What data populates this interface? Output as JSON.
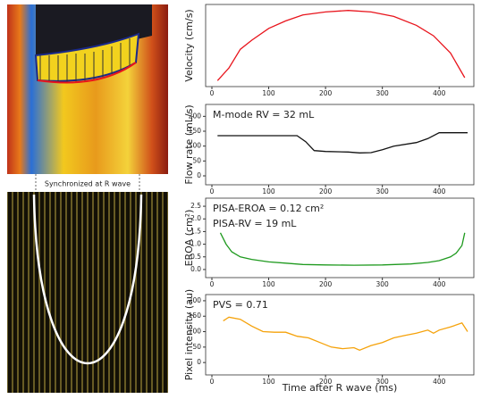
{
  "image_caption": "Synchronized at R wave",
  "chart_data": [
    {
      "type": "line",
      "y_label": "Velocity (cm/s)",
      "color": "#e8141c",
      "x": [
        10,
        30,
        50,
        70,
        100,
        130,
        160,
        200,
        240,
        280,
        320,
        360,
        390,
        420,
        445
      ],
      "values": [
        8,
        25,
        50,
        62,
        78,
        88,
        96,
        100,
        102,
        100,
        94,
        82,
        68,
        45,
        12
      ],
      "xlim": [
        -11,
        461
      ],
      "xticks": [
        0,
        100,
        200,
        300,
        400
      ],
      "ylim": [
        0,
        110
      ]
    },
    {
      "type": "line",
      "y_label": "Flow rate (mL/s)",
      "color": "#111111",
      "annotations": [
        "M-mode RV = 32 mL"
      ],
      "x": [
        10,
        150,
        165,
        180,
        200,
        240,
        260,
        280,
        300,
        320,
        360,
        380,
        400,
        450
      ],
      "values": [
        135,
        135,
        115,
        85,
        82,
        80,
        77,
        78,
        88,
        100,
        112,
        125,
        145,
        145
      ],
      "xlim": [
        -11,
        461
      ],
      "xticks": [
        0,
        100,
        200,
        300,
        400
      ],
      "ylim": [
        -30,
        240
      ],
      "yticks": [
        0,
        50,
        100,
        150,
        200
      ]
    },
    {
      "type": "line",
      "y_label": "EROA (cm²)",
      "color": "#1f9a1f",
      "annotations": [
        "PISA-EROA = 0.12 cm²",
        "PISA-RV = 19 mL"
      ],
      "x": [
        15,
        25,
        35,
        50,
        70,
        100,
        130,
        160,
        200,
        250,
        300,
        350,
        380,
        400,
        420,
        430,
        440,
        445
      ],
      "values": [
        1.45,
        1.0,
        0.7,
        0.5,
        0.4,
        0.3,
        0.25,
        0.2,
        0.18,
        0.17,
        0.18,
        0.22,
        0.28,
        0.35,
        0.5,
        0.65,
        0.95,
        1.45
      ],
      "xlim": [
        -11,
        461
      ],
      "xticks": [
        0,
        100,
        200,
        300,
        400
      ],
      "ylim": [
        -0.32,
        2.82
      ],
      "yticks": [
        {
          "value": 0,
          "label": "0.0"
        },
        0.5,
        {
          "value": 1,
          "label": "1.0"
        },
        1.5,
        {
          "value": 2,
          "label": "2.0"
        },
        2.5
      ]
    },
    {
      "type": "line",
      "y_label": "Pixel intensity (au)",
      "x_label": "Time after R wave (ms)",
      "color": "#f5a20a",
      "annotations": [
        "PVS = 0.71"
      ],
      "x": [
        20,
        30,
        50,
        70,
        90,
        110,
        130,
        150,
        170,
        190,
        210,
        230,
        250,
        260,
        280,
        300,
        320,
        340,
        360,
        380,
        390,
        400,
        420,
        440,
        450
      ],
      "values": [
        135,
        147,
        140,
        118,
        100,
        98,
        98,
        85,
        80,
        65,
        50,
        45,
        48,
        40,
        55,
        65,
        80,
        88,
        95,
        105,
        95,
        105,
        115,
        128,
        100
      ],
      "xlim": [
        -11,
        461
      ],
      "xticks": [
        0,
        100,
        200,
        300,
        400
      ],
      "ylim": [
        -40,
        220
      ],
      "yticks": [
        0,
        50,
        100,
        150,
        200
      ]
    }
  ]
}
